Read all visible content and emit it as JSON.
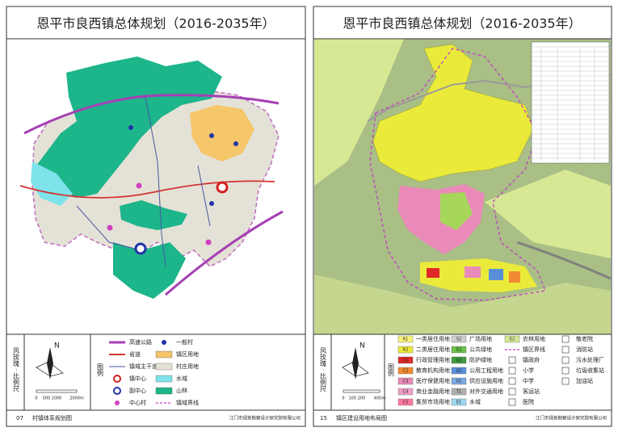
{
  "left": {
    "title": "恩平市良西镇总体规划（2016-2035年）",
    "side_label": "风玫瑰 · 比例尺",
    "legend_title": "图例",
    "north": "N",
    "scale": [
      "0",
      "500",
      "1000",
      "2000m"
    ],
    "legend": [
      {
        "label": "高速公路"
      },
      {
        "label": "省道"
      },
      {
        "label": "镇域主干道"
      },
      {
        "label": "镇中心"
      },
      {
        "label": "副中心"
      },
      {
        "label": "中心村"
      },
      {
        "label": "一般村"
      },
      {
        "label": "镇区用地"
      },
      {
        "label": "村庄用地"
      },
      {
        "label": "水域"
      },
      {
        "label": "山林"
      },
      {
        "label": "镇域界线"
      }
    ],
    "page_number": "07",
    "map_name": "村镇体系规划图",
    "institute": "江门市规划勘察设计研究院有限公司"
  },
  "right": {
    "title": "恩平市良西镇总体规划（2016-2035年）",
    "side_label": "风玫瑰 · 比例尺",
    "legend_title": "图例",
    "north": "N",
    "scale": [
      "0",
      "100",
      "200",
      "400m"
    ],
    "legend": [
      {
        "code": "R1",
        "label": "一类居住用地"
      },
      {
        "code": "R2",
        "label": "二类居住用地"
      },
      {
        "code": "C1",
        "label": "行政管理用地"
      },
      {
        "code": "C2",
        "label": "教育机构用地"
      },
      {
        "code": "C3",
        "label": "医疗保健用地"
      },
      {
        "code": "C4",
        "label": "商业金融用地"
      },
      {
        "code": "C5",
        "label": "集贸市场用地"
      },
      {
        "code": "S2",
        "label": "广场用地"
      },
      {
        "code": "G1",
        "label": "公共绿地"
      },
      {
        "code": "G2",
        "label": "防护绿地"
      },
      {
        "code": "U2",
        "label": "公用工程用地"
      },
      {
        "code": "U1",
        "label": "供应设施用地"
      },
      {
        "code": "T1",
        "label": "对外交通用地"
      },
      {
        "code": "E1",
        "label": "水域"
      },
      {
        "code": "E2",
        "label": "农林用地"
      },
      {
        "label": "镇区界线"
      },
      {
        "label": "镇政府"
      },
      {
        "label": "小学"
      },
      {
        "label": "中学"
      },
      {
        "label": "客运站"
      },
      {
        "label": "医院"
      },
      {
        "label": "敬老院"
      },
      {
        "label": "消防站"
      },
      {
        "label": "污水处理厂"
      },
      {
        "label": "垃圾收集站"
      },
      {
        "label": "加油站"
      }
    ],
    "page_number": "15",
    "map_name": "镇区建设用地布局图",
    "institute": "江门市规划勘察设计研究院有限公司"
  }
}
